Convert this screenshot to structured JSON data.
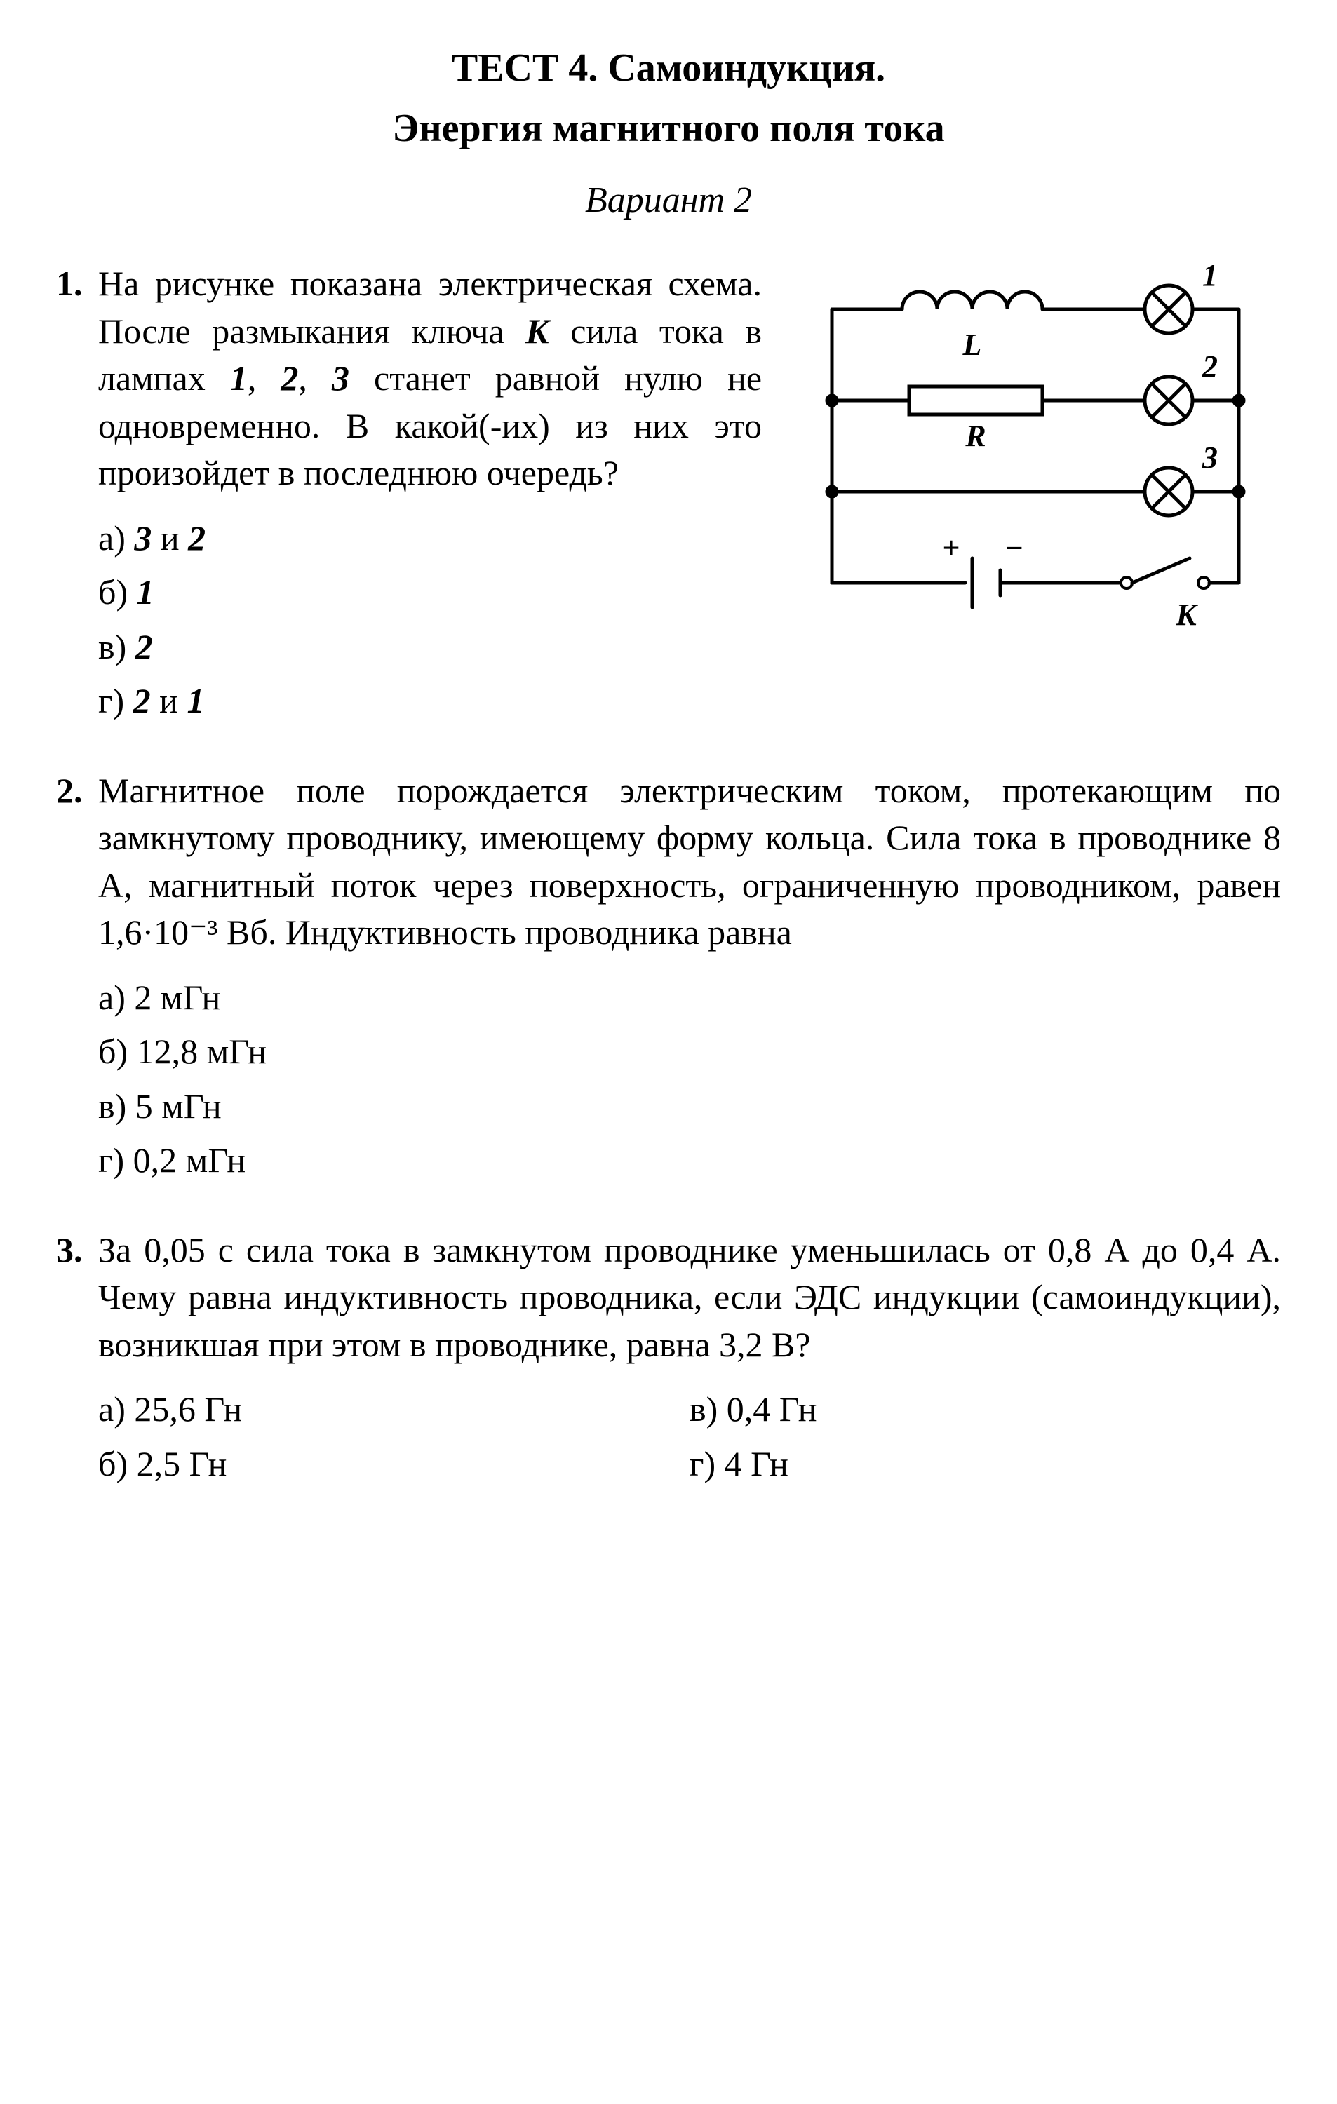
{
  "header": {
    "title_line1": "ТЕСТ 4. Самоиндукция.",
    "title_line2": "Энергия магнитного поля тока",
    "variant": "Вариант 2"
  },
  "circuit": {
    "stroke": "#000000",
    "stroke_width": 5,
    "label_fontsize": 44,
    "label_font": "italic bold",
    "L_label": "L",
    "R_label": "R",
    "K_label": "K",
    "plus": "+",
    "minus": "−",
    "lamp_labels": [
      "1",
      "2",
      "3"
    ],
    "lamp_radius": 34
  },
  "questions": [
    {
      "num": "1.",
      "text_parts": [
        "На рисунке показана электрическая схема. После размыкания ключа ",
        {
          "italic": "K"
        },
        " сила тока в лампах ",
        {
          "italic": "1"
        },
        ", ",
        {
          "italic": "2"
        },
        ", ",
        {
          "italic": "3"
        },
        " станет равной нулю не одновременно. В какой(-их) из них это произойдет в последнюю очередь?"
      ],
      "answers": [
        {
          "label": "а)",
          "text_parts": [
            " ",
            {
              "italic": "3"
            },
            " и ",
            {
              "italic": "2"
            }
          ]
        },
        {
          "label": "б)",
          "text_parts": [
            " ",
            {
              "italic": "1"
            }
          ]
        },
        {
          "label": "в)",
          "text_parts": [
            " ",
            {
              "italic": "2"
            }
          ]
        },
        {
          "label": "г)",
          "text_parts": [
            " ",
            {
              "italic": "2"
            },
            " и ",
            {
              "italic": "1"
            }
          ]
        }
      ],
      "has_circuit": true
    },
    {
      "num": "2.",
      "text_parts": [
        "Магнитное поле порождается электрическим током, протекающим по замкнутому проводнику, имеющему форму кольца. Сила тока в проводнике 8 А, магнитный поток через поверхность, ограниченную проводником, равен 1,6·10⁻³ Вб. Индуктивность проводника равна"
      ],
      "answers": [
        {
          "label": "а)",
          "text_parts": [
            " 2 мГн"
          ]
        },
        {
          "label": "б)",
          "text_parts": [
            " 12,8 мГн"
          ]
        },
        {
          "label": "в)",
          "text_parts": [
            " 5 мГн"
          ]
        },
        {
          "label": "г)",
          "text_parts": [
            " 0,2 мГн"
          ]
        }
      ]
    },
    {
      "num": "3.",
      "text_parts": [
        "За 0,05 с сила тока в замкнутом проводнике уменьшилась от 0,8 А до 0,4 А. Чему равна индуктивность проводника, если ЭДС индукции (самоиндукции), возникшая при этом в проводнике, равна 3,2 В?"
      ],
      "answers_two_col": true,
      "answers_left": [
        {
          "label": "а)",
          "text_parts": [
            " 25,6 Гн"
          ]
        },
        {
          "label": "б)",
          "text_parts": [
            " 2,5 Гн"
          ]
        }
      ],
      "answers_right": [
        {
          "label": "в)",
          "text_parts": [
            " 0,4 Гн"
          ]
        },
        {
          "label": "г)",
          "text_parts": [
            " 4 Гн"
          ]
        }
      ]
    }
  ]
}
